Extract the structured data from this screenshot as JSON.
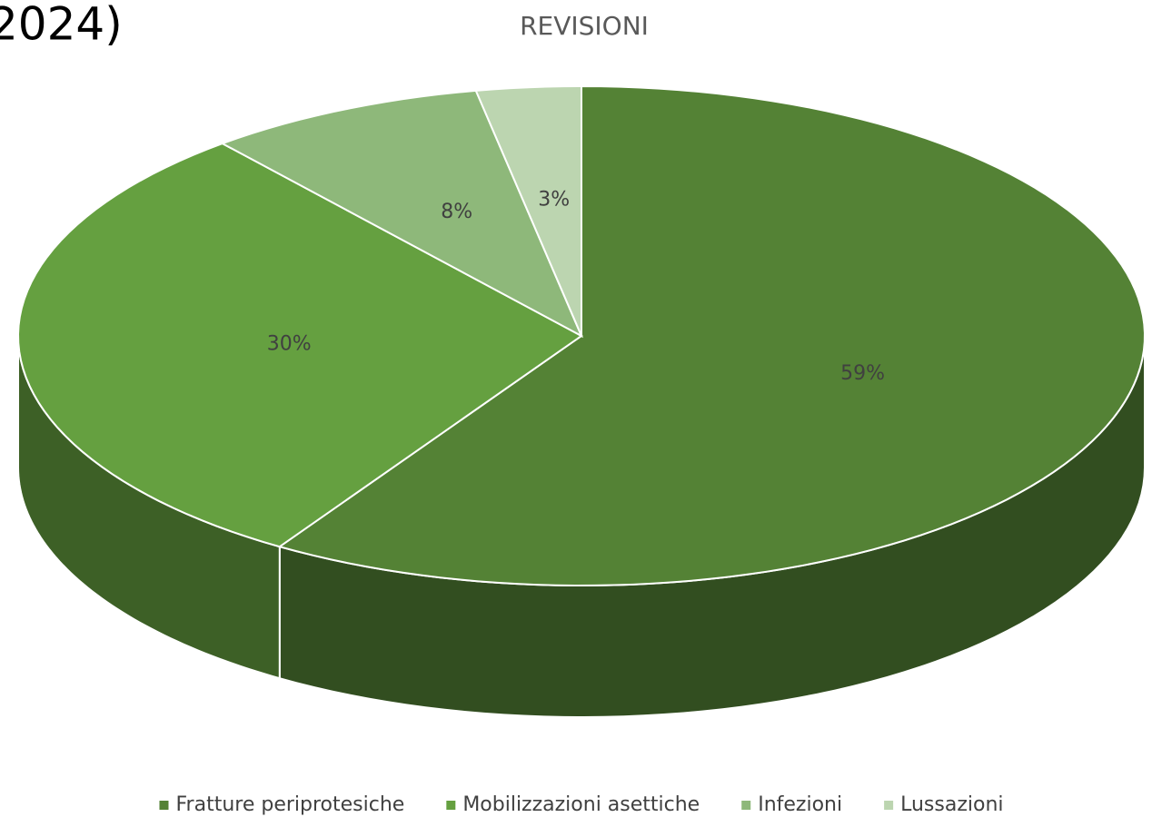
{
  "chart_data": {
    "type": "pie3d",
    "title": "REVISIONI",
    "annotation": "2024)",
    "categories": [
      "Fratture periprotesiche",
      "Mobilizzazioni asettiche",
      "Infezioni",
      "Lussazioni"
    ],
    "values": [
      59,
      30,
      8,
      3
    ],
    "value_labels": [
      "59%",
      "30%",
      "8%",
      "3%"
    ],
    "colors": [
      "#548235",
      "#65a040",
      "#8eb87a",
      "#bcd5b0"
    ],
    "legend": "bottom"
  }
}
